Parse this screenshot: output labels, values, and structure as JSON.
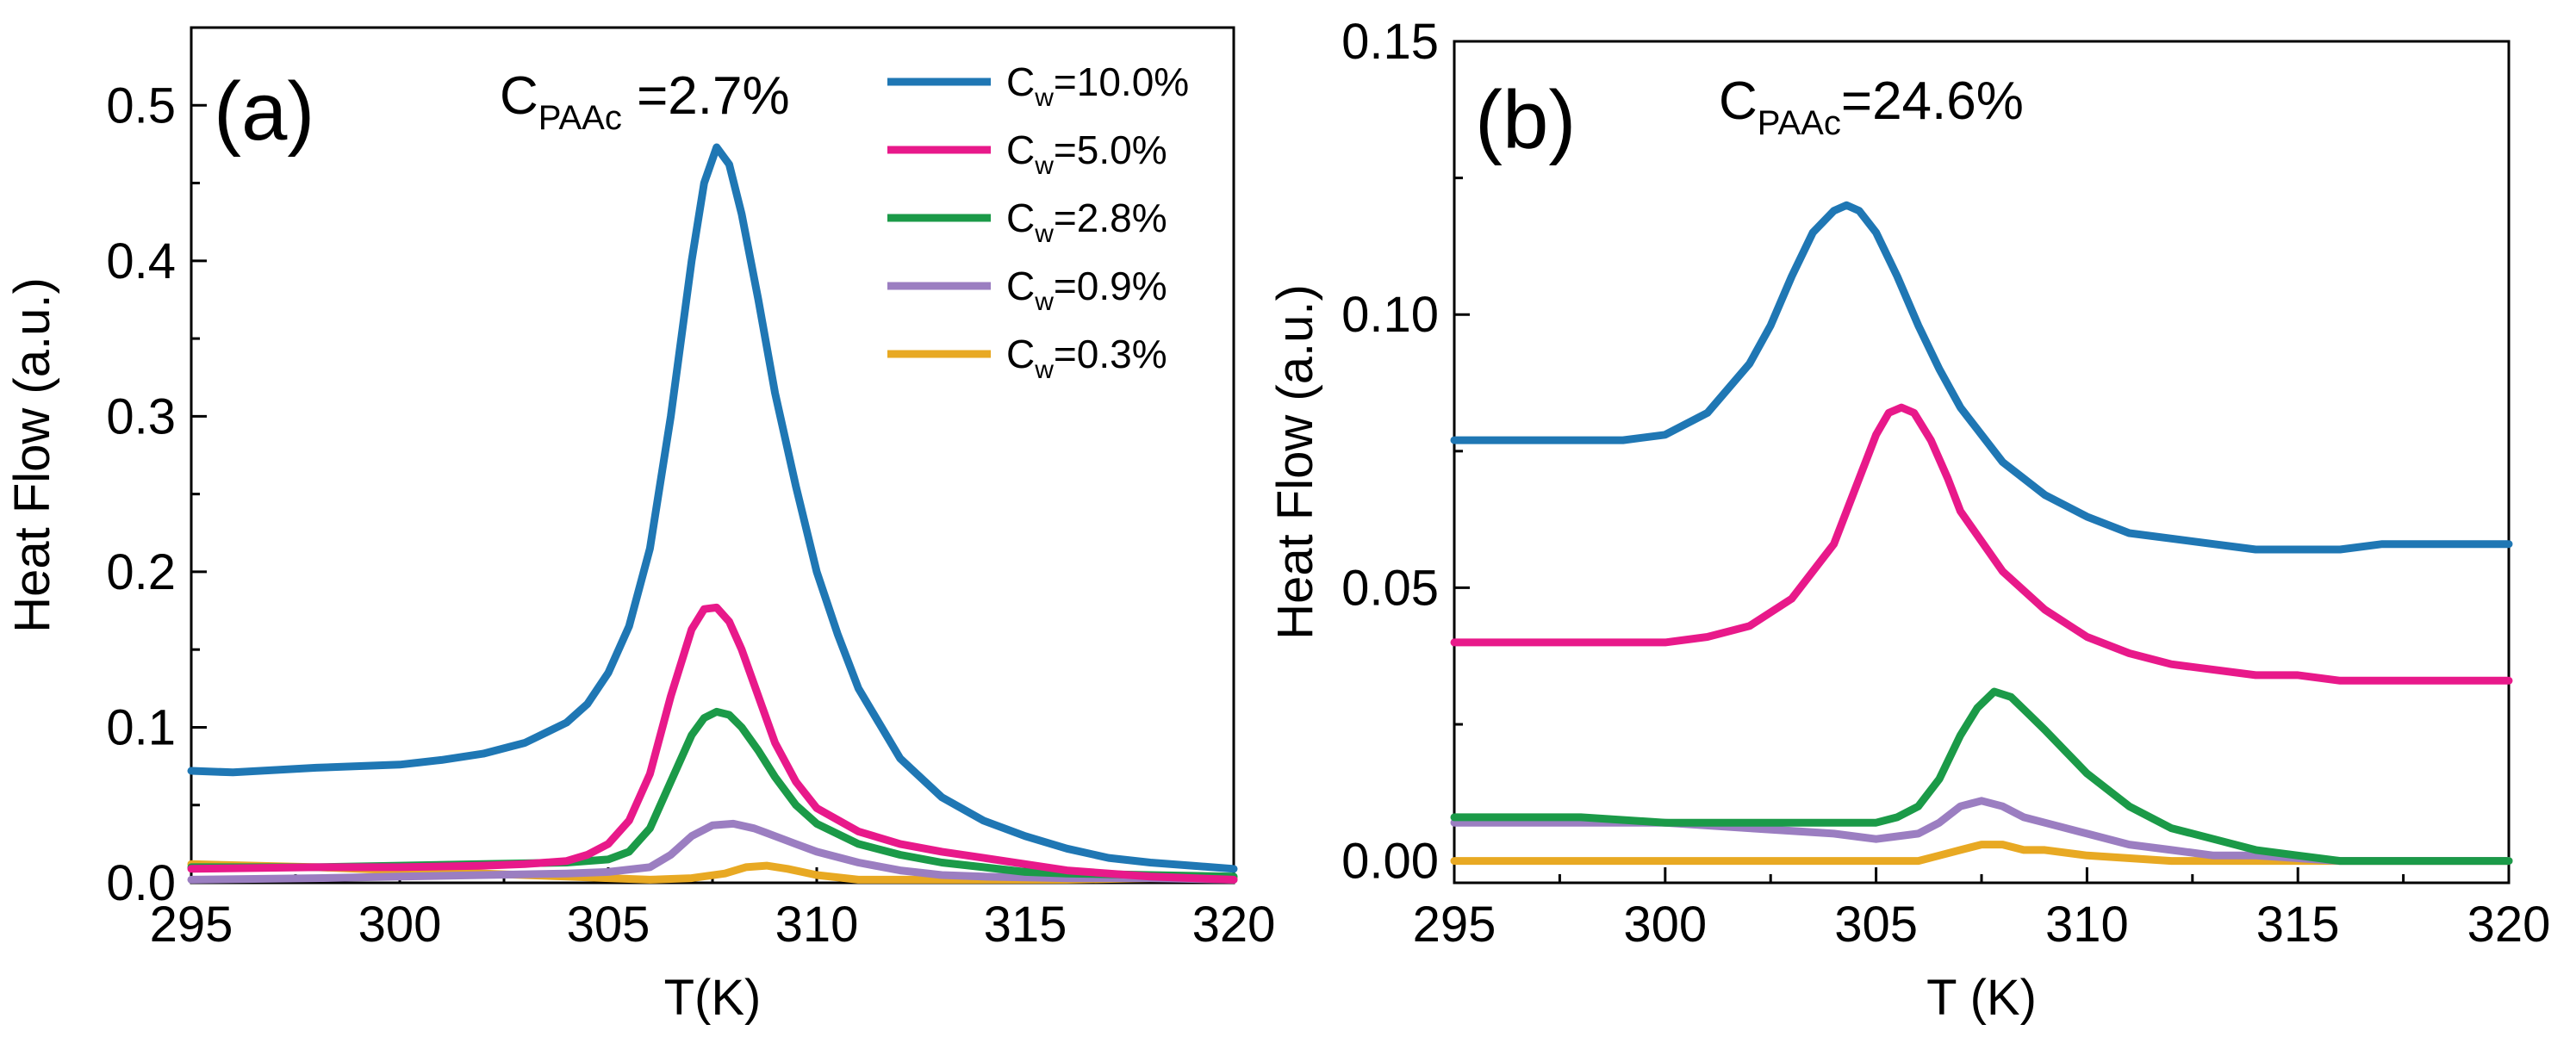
{
  "chart_data": [
    {
      "type": "line",
      "panel_label": "(a)",
      "annotation": {
        "main": "C",
        "sub": "PAAc",
        "rest": " =2.7%"
      },
      "xlabel": "T(K)",
      "ylabel": "Heat Flow  (a.u.)",
      "xlim": [
        295,
        320
      ],
      "ylim": [
        0,
        0.55
      ],
      "xticks": [
        295,
        300,
        305,
        310,
        315,
        320
      ],
      "xtick_labels": [
        "295",
        "300",
        "305",
        "310",
        "315",
        "320"
      ],
      "yticks": [
        0,
        0.1,
        0.2,
        0.3,
        0.4,
        0.5
      ],
      "ytick_labels": [
        "0.0",
        "0.1",
        "0.2",
        "0.3",
        "0.4",
        "0.5"
      ],
      "legend_position": "top-right",
      "series": [
        {
          "name": "Cw=10.0%",
          "label_main": "C",
          "label_sub": "w",
          "label_rest": "=10.0%",
          "color": "#1f77b4",
          "x": [
            295,
            296,
            298,
            300,
            301,
            302,
            303,
            304,
            304.5,
            305,
            305.5,
            306,
            306.5,
            307,
            307.3,
            307.6,
            307.9,
            308.2,
            308.6,
            309,
            309.5,
            310,
            310.5,
            311,
            312,
            313,
            314,
            315,
            316,
            317,
            318,
            319,
            320
          ],
          "y": [
            0.072,
            0.071,
            0.074,
            0.076,
            0.079,
            0.083,
            0.09,
            0.103,
            0.115,
            0.135,
            0.165,
            0.215,
            0.3,
            0.4,
            0.45,
            0.473,
            0.462,
            0.43,
            0.375,
            0.315,
            0.255,
            0.2,
            0.16,
            0.125,
            0.08,
            0.055,
            0.04,
            0.03,
            0.022,
            0.016,
            0.013,
            0.011,
            0.009
          ]
        },
        {
          "name": "Cw=5.0%",
          "label_main": "C",
          "label_sub": "w",
          "label_rest": "=5.0%",
          "color": "#e8198a",
          "x": [
            295,
            298,
            300,
            302,
            303,
            304,
            304.5,
            305,
            305.5,
            306,
            306.5,
            307,
            307.3,
            307.6,
            307.9,
            308.2,
            308.6,
            309,
            309.5,
            310,
            311,
            312,
            313,
            314,
            315,
            316,
            318,
            320
          ],
          "y": [
            0.009,
            0.01,
            0.01,
            0.011,
            0.012,
            0.014,
            0.018,
            0.025,
            0.04,
            0.07,
            0.12,
            0.163,
            0.176,
            0.177,
            0.168,
            0.15,
            0.12,
            0.09,
            0.065,
            0.048,
            0.033,
            0.025,
            0.02,
            0.016,
            0.012,
            0.008,
            0.004,
            0.002
          ]
        },
        {
          "name": "Cw=2.8%",
          "label_main": "C",
          "label_sub": "w",
          "label_rest": "=2.8%",
          "color": "#1b9a48",
          "x": [
            295,
            298,
            300,
            302,
            304,
            305,
            305.5,
            306,
            306.5,
            307,
            307.3,
            307.6,
            307.9,
            308.2,
            308.6,
            309,
            309.5,
            310,
            311,
            312,
            313,
            314,
            315,
            316,
            318,
            320
          ],
          "y": [
            0.01,
            0.01,
            0.011,
            0.012,
            0.013,
            0.015,
            0.02,
            0.035,
            0.065,
            0.095,
            0.106,
            0.11,
            0.108,
            0.1,
            0.085,
            0.068,
            0.05,
            0.038,
            0.025,
            0.018,
            0.013,
            0.01,
            0.007,
            0.006,
            0.005,
            0.004
          ]
        },
        {
          "name": "Cw=0.9%",
          "label_main": "C",
          "label_sub": "w",
          "label_rest": "=0.9%",
          "color": "#9b7ec1",
          "x": [
            295,
            298,
            300,
            302,
            304,
            305,
            306,
            306.5,
            307,
            307.5,
            308,
            308.5,
            309,
            309.5,
            310,
            311,
            312,
            313,
            314,
            316,
            318,
            320
          ],
          "y": [
            0.002,
            0.003,
            0.004,
            0.005,
            0.006,
            0.007,
            0.01,
            0.018,
            0.03,
            0.037,
            0.038,
            0.035,
            0.03,
            0.025,
            0.02,
            0.013,
            0.008,
            0.005,
            0.004,
            0.003,
            0.003,
            0.002
          ]
        },
        {
          "name": "Cw=0.3%",
          "label_main": "C",
          "label_sub": "w",
          "label_rest": "=0.3%",
          "color": "#e8a923",
          "x": [
            295,
            298,
            300,
            302,
            304,
            305,
            306,
            307,
            307.8,
            308.3,
            308.8,
            309.3,
            310,
            311,
            312,
            314,
            316,
            318,
            320
          ],
          "y": [
            0.012,
            0.01,
            0.008,
            0.006,
            0.004,
            0.003,
            0.002,
            0.003,
            0.006,
            0.01,
            0.011,
            0.009,
            0.005,
            0.002,
            0.002,
            0.002,
            0.002,
            0.003,
            0.003
          ]
        }
      ]
    },
    {
      "type": "line",
      "panel_label": "(b)",
      "annotation": {
        "main": "C",
        "sub": "PAAc",
        "rest": "=24.6%"
      },
      "xlabel": "T (K)",
      "ylabel": "Heat Flow (a.u.)",
      "xlim": [
        295,
        320
      ],
      "ylim": [
        -0.004,
        0.15
      ],
      "xticks": [
        295,
        300,
        305,
        310,
        315,
        320
      ],
      "xtick_labels": [
        "295",
        "300",
        "305",
        "310",
        "315",
        "320"
      ],
      "yticks": [
        0,
        0.05,
        0.1,
        0.15
      ],
      "ytick_labels": [
        "0.00",
        "0.05",
        "0.10",
        "0.15"
      ],
      "series": [
        {
          "name": "Cw=10.0%",
          "color": "#1f77b4",
          "x": [
            295,
            297,
            299,
            300,
            301,
            302,
            302.5,
            303,
            303.5,
            304,
            304.3,
            304.6,
            305,
            305.5,
            306,
            306.5,
            307,
            308,
            309,
            310,
            311,
            312,
            313,
            314,
            315,
            316,
            317,
            318,
            319,
            320
          ],
          "y": [
            0.077,
            0.077,
            0.077,
            0.078,
            0.082,
            0.091,
            0.098,
            0.107,
            0.115,
            0.119,
            0.12,
            0.119,
            0.115,
            0.107,
            0.098,
            0.09,
            0.083,
            0.073,
            0.067,
            0.063,
            0.06,
            0.059,
            0.058,
            0.057,
            0.057,
            0.057,
            0.058,
            0.058,
            0.058,
            0.058
          ]
        },
        {
          "name": "Cw=5.0%",
          "color": "#e8198a",
          "x": [
            295,
            297,
            299,
            300,
            301,
            302,
            303,
            304,
            304.5,
            305,
            305.3,
            305.6,
            305.9,
            306.3,
            306.7,
            307,
            308,
            309,
            310,
            311,
            312,
            313,
            314,
            315,
            316,
            317,
            318,
            320
          ],
          "y": [
            0.04,
            0.04,
            0.04,
            0.04,
            0.041,
            0.043,
            0.048,
            0.058,
            0.068,
            0.078,
            0.082,
            0.083,
            0.082,
            0.077,
            0.07,
            0.064,
            0.053,
            0.046,
            0.041,
            0.038,
            0.036,
            0.035,
            0.034,
            0.034,
            0.033,
            0.033,
            0.033,
            0.033
          ]
        },
        {
          "name": "Cw=2.8%",
          "color": "#1b9a48",
          "x": [
            295,
            298,
            300,
            302,
            304,
            305,
            305.5,
            306,
            306.5,
            307,
            307.4,
            307.8,
            308.2,
            308.6,
            309,
            309.5,
            310,
            311,
            312,
            313,
            314,
            315,
            316,
            317,
            318,
            320
          ],
          "y": [
            0.008,
            0.008,
            0.007,
            0.007,
            0.007,
            0.007,
            0.008,
            0.01,
            0.015,
            0.023,
            0.028,
            0.031,
            0.03,
            0.027,
            0.024,
            0.02,
            0.016,
            0.01,
            0.006,
            0.004,
            0.002,
            0.001,
            0.0,
            0.0,
            0.0,
            0.0
          ]
        },
        {
          "name": "Cw=0.9%",
          "color": "#9b7ec1",
          "x": [
            295,
            298,
            300,
            302,
            304,
            305,
            306,
            306.5,
            307,
            307.5,
            308,
            308.5,
            309,
            310,
            311,
            312,
            313,
            314,
            316,
            318,
            320
          ],
          "y": [
            0.007,
            0.007,
            0.007,
            0.006,
            0.005,
            0.004,
            0.005,
            0.007,
            0.01,
            0.011,
            0.01,
            0.008,
            0.007,
            0.005,
            0.003,
            0.002,
            0.001,
            0.001,
            0.0,
            0.0,
            0.0
          ]
        },
        {
          "name": "Cw=0.3%",
          "color": "#e8a923",
          "x": [
            295,
            298,
            300,
            302,
            304,
            305,
            306,
            306.5,
            307,
            307.5,
            308,
            308.5,
            309,
            310,
            312,
            314,
            316,
            318,
            320
          ],
          "y": [
            0.0,
            0.0,
            0.0,
            0.0,
            0.0,
            0.0,
            0.0,
            0.001,
            0.002,
            0.003,
            0.003,
            0.002,
            0.002,
            0.001,
            0.0,
            0.0,
            0.0,
            0.0,
            0.0
          ]
        }
      ]
    }
  ]
}
